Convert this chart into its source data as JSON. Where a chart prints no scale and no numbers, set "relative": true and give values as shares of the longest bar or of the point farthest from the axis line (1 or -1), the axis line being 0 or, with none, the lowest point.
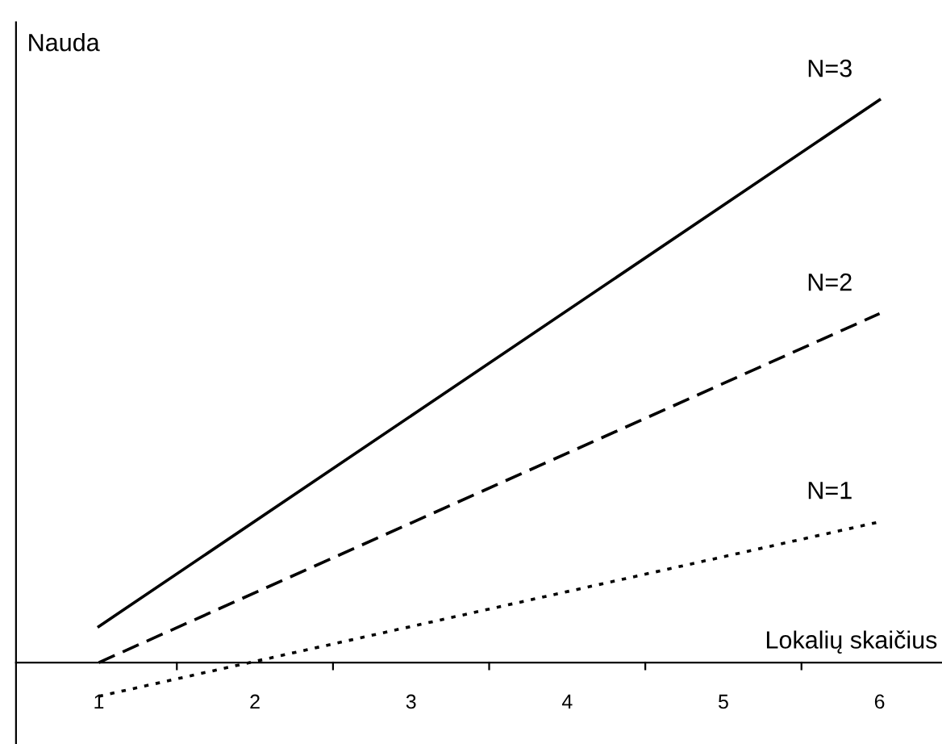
{
  "chart_data": {
    "type": "line",
    "relative": true,
    "ylabel": "Nauda",
    "xlabel": "Lokalių skaičius",
    "categories": [
      "1",
      "2",
      "3",
      "4",
      "5",
      "6"
    ],
    "series": [
      {
        "name": "N=3",
        "color": "#000000",
        "line_style": "solid",
        "values": [
          0.064,
          null,
          null,
          null,
          null,
          1
        ]
      },
      {
        "name": "N=2",
        "color": "#000000",
        "line_style": "dashed",
        "values": [
          0,
          null,
          null,
          null,
          null,
          0.62
        ]
      },
      {
        "name": "N=1",
        "color": "#000000",
        "line_style": "dotted",
        "values": [
          -0.06,
          null,
          null,
          null,
          null,
          0.25
        ]
      }
    ],
    "legend": false,
    "grid": false,
    "marker": "none"
  }
}
